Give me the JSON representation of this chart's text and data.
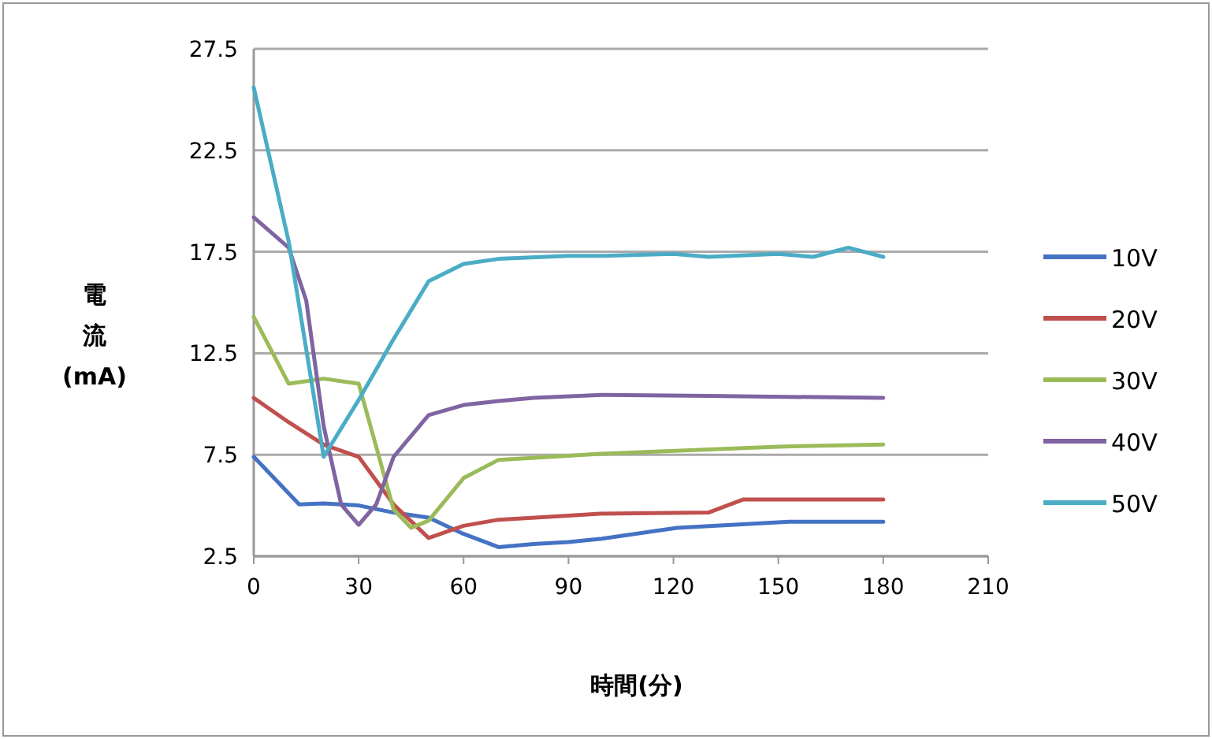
{
  "chart_data": {
    "type": "line",
    "xlabel": "時間(分)",
    "ylabel": "電流(mA)",
    "xlim": [
      0,
      210
    ],
    "xticks": [
      0,
      30,
      60,
      90,
      120,
      150,
      180,
      210
    ],
    "ylim": [
      2.5,
      27.5
    ],
    "yticks": [
      2.5,
      7.5,
      12.5,
      17.5,
      22.5,
      27.5
    ],
    "grid": "y",
    "legend": "right",
    "marker": "none",
    "line_style": "solid",
    "series": [
      {
        "name": "10V",
        "color": "#4472c4",
        "x": [
          0,
          13,
          20,
          30,
          40,
          50,
          60,
          70,
          80,
          90,
          99,
          121,
          153,
          180
        ],
        "values": [
          7.4,
          5.05,
          5.1,
          5.0,
          4.65,
          4.4,
          3.6,
          2.95,
          3.1,
          3.2,
          3.35,
          3.9,
          4.2,
          4.2
        ]
      },
      {
        "name": "20V",
        "color": "#c0504d",
        "x": [
          0,
          10,
          20,
          30,
          40,
          50,
          60,
          70,
          90,
          99,
          130,
          140,
          180
        ],
        "values": [
          10.3,
          9.1,
          8.0,
          7.4,
          5.05,
          3.4,
          4.0,
          4.3,
          4.5,
          4.6,
          4.65,
          5.3,
          5.3
        ]
      },
      {
        "name": "30V",
        "color": "#9bbb59",
        "x": [
          0,
          10,
          20,
          30,
          35,
          40,
          45,
          50,
          60,
          70,
          90,
          99,
          150,
          180
        ],
        "values": [
          14.3,
          11.0,
          11.25,
          11.0,
          7.9,
          4.8,
          3.9,
          4.25,
          6.35,
          7.25,
          7.45,
          7.55,
          7.9,
          8.0
        ]
      },
      {
        "name": "40V",
        "color": "#8064a2",
        "x": [
          0,
          10,
          15,
          20,
          25,
          30,
          35,
          40,
          50,
          60,
          70,
          80,
          100,
          130,
          180
        ],
        "values": [
          19.2,
          17.7,
          15.1,
          8.9,
          5.05,
          4.05,
          5.05,
          7.4,
          9.45,
          9.95,
          10.15,
          10.3,
          10.45,
          10.4,
          10.3
        ]
      },
      {
        "name": "50V",
        "color": "#4bacc6",
        "x": [
          0,
          10,
          20,
          30,
          40,
          50,
          60,
          70,
          90,
          100,
          120,
          130,
          150,
          160,
          170,
          180
        ],
        "values": [
          25.6,
          18.0,
          7.4,
          10.2,
          13.2,
          16.05,
          16.9,
          17.15,
          17.3,
          17.3,
          17.4,
          17.25,
          17.4,
          17.25,
          17.7,
          17.25
        ]
      }
    ]
  }
}
